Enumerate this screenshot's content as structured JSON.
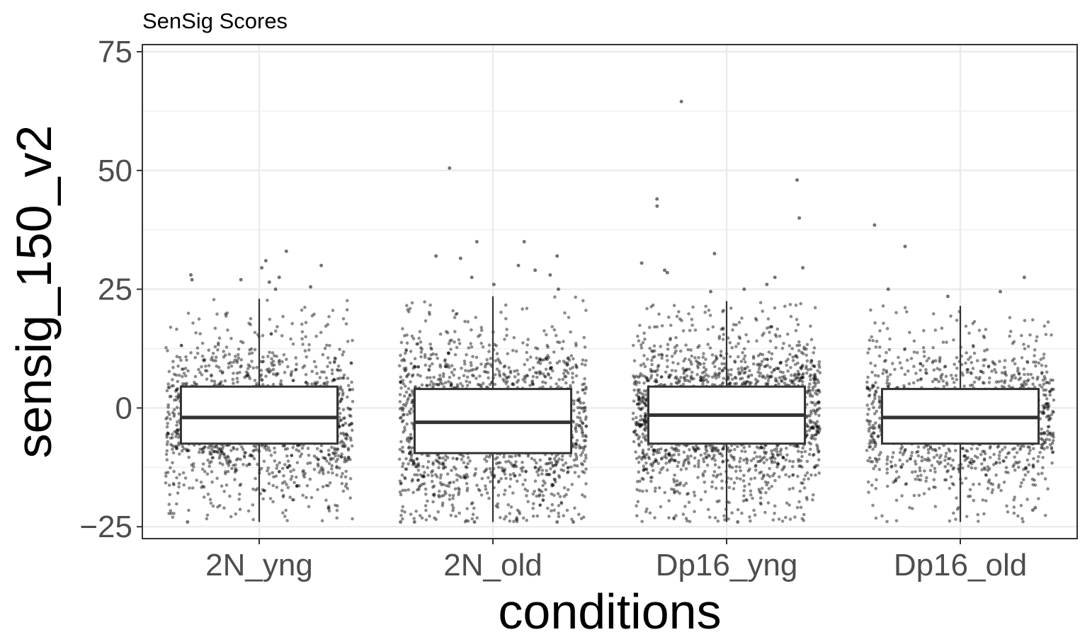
{
  "chart_data": {
    "type": "box",
    "title": "SenSig Scores",
    "xlabel": "conditions",
    "ylabel": "sensig_150_v2",
    "categories": [
      "2N_yng",
      "2N_old",
      "Dp16_yng",
      "Dp16_old"
    ],
    "ylim": [
      -27.5,
      76.5
    ],
    "yticks": [
      -25,
      0,
      25,
      50,
      75
    ],
    "ytick_labels": [
      "−25",
      "0",
      "25",
      "50",
      "75"
    ],
    "grid": true,
    "legend": "none",
    "boxes": [
      {
        "category": "2N_yng",
        "whisker_low": -24,
        "q1": -7.5,
        "median": -2,
        "q3": 4.5,
        "whisker_high": 23,
        "n_points": 1400,
        "outliers": [
          33,
          31,
          30,
          29.5,
          28,
          27.5,
          27,
          27,
          26.5,
          25.5,
          25,
          -24
        ]
      },
      {
        "category": "2N_old",
        "whisker_low": -24,
        "q1": -9.5,
        "median": -3,
        "q3": 4,
        "whisker_high": 23.5,
        "n_points": 1700,
        "outliers": [
          50.5,
          35,
          35,
          32,
          32,
          31.5,
          30,
          29,
          28,
          27.5,
          26,
          25,
          -24,
          -24,
          -24,
          -24,
          -24
        ]
      },
      {
        "category": "Dp16_yng",
        "whisker_low": -24,
        "q1": -7.5,
        "median": -1.5,
        "q3": 4.5,
        "whisker_high": 22.5,
        "n_points": 2000,
        "outliers": [
          64.5,
          48,
          44,
          42.5,
          40,
          32.5,
          30.5,
          29.5,
          29,
          28.5,
          27.5,
          26,
          25,
          24.5,
          -24
        ]
      },
      {
        "category": "Dp16_old",
        "whisker_low": -24,
        "q1": -7.5,
        "median": -2,
        "q3": 4,
        "whisker_high": 21.5,
        "n_points": 1300,
        "outliers": [
          38.5,
          34,
          27.5,
          25,
          24.5,
          23.5,
          -21.5,
          -21
        ]
      }
    ]
  },
  "colors": {
    "point": "#000000",
    "box_fill": "#ffffff",
    "box_stroke": "#333333",
    "grid": "#ebebeb",
    "panel_border": "#333333",
    "tick_text": "#4d4d4d"
  }
}
